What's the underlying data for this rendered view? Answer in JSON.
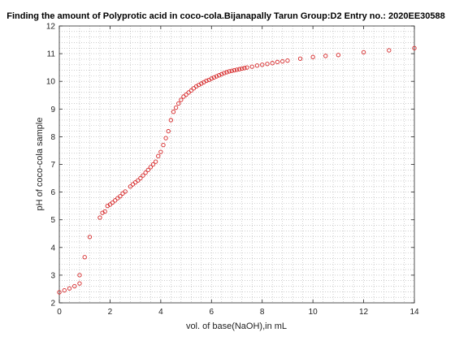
{
  "chart_data": {
    "type": "scatter",
    "title": "Finding the amount of Polyprotic acid in coco-cola.Bijanapally Tarun Group:D2 Entry no.: 2020EE30588",
    "xlabel": "vol. of base(NaOH),in mL",
    "ylabel": "pH of coco-cola sample",
    "xlim": [
      0,
      14
    ],
    "ylim": [
      2,
      12
    ],
    "xticks": [
      0,
      2,
      4,
      6,
      8,
      10,
      12,
      14
    ],
    "yticks": [
      2,
      3,
      4,
      5,
      6,
      7,
      8,
      9,
      10,
      11,
      12
    ],
    "grid": "minor-dotted",
    "marker_color": "#d62728",
    "series": [
      {
        "points": [
          [
            0.0,
            2.38
          ],
          [
            0.2,
            2.45
          ],
          [
            0.4,
            2.52
          ],
          [
            0.6,
            2.6
          ],
          [
            0.8,
            2.7
          ],
          [
            0.8,
            3.0
          ],
          [
            1.0,
            3.65
          ],
          [
            1.2,
            4.38
          ],
          [
            1.6,
            5.08
          ],
          [
            1.7,
            5.25
          ],
          [
            1.8,
            5.3
          ],
          [
            1.9,
            5.5
          ],
          [
            2.0,
            5.55
          ],
          [
            2.1,
            5.62
          ],
          [
            2.2,
            5.7
          ],
          [
            2.3,
            5.78
          ],
          [
            2.4,
            5.85
          ],
          [
            2.5,
            5.95
          ],
          [
            2.6,
            6.02
          ],
          [
            2.8,
            6.2
          ],
          [
            2.9,
            6.28
          ],
          [
            3.0,
            6.35
          ],
          [
            3.1,
            6.42
          ],
          [
            3.2,
            6.5
          ],
          [
            3.3,
            6.6
          ],
          [
            3.4,
            6.7
          ],
          [
            3.5,
            6.8
          ],
          [
            3.6,
            6.9
          ],
          [
            3.7,
            7.0
          ],
          [
            3.8,
            7.1
          ],
          [
            3.9,
            7.3
          ],
          [
            4.0,
            7.45
          ],
          [
            4.1,
            7.7
          ],
          [
            4.2,
            7.95
          ],
          [
            4.3,
            8.2
          ],
          [
            4.4,
            8.6
          ],
          [
            4.5,
            8.9
          ],
          [
            4.6,
            9.05
          ],
          [
            4.7,
            9.2
          ],
          [
            4.8,
            9.33
          ],
          [
            4.9,
            9.45
          ],
          [
            5.0,
            9.52
          ],
          [
            5.1,
            9.6
          ],
          [
            5.2,
            9.67
          ],
          [
            5.3,
            9.75
          ],
          [
            5.4,
            9.82
          ],
          [
            5.5,
            9.87
          ],
          [
            5.6,
            9.92
          ],
          [
            5.7,
            9.97
          ],
          [
            5.8,
            10.02
          ],
          [
            5.9,
            10.05
          ],
          [
            6.0,
            10.1
          ],
          [
            6.1,
            10.14
          ],
          [
            6.2,
            10.18
          ],
          [
            6.3,
            10.22
          ],
          [
            6.4,
            10.26
          ],
          [
            6.5,
            10.3
          ],
          [
            6.6,
            10.33
          ],
          [
            6.7,
            10.36
          ],
          [
            6.8,
            10.38
          ],
          [
            6.9,
            10.4
          ],
          [
            7.0,
            10.42
          ],
          [
            7.1,
            10.44
          ],
          [
            7.2,
            10.46
          ],
          [
            7.3,
            10.48
          ],
          [
            7.4,
            10.5
          ],
          [
            7.6,
            10.53
          ],
          [
            7.8,
            10.57
          ],
          [
            8.0,
            10.6
          ],
          [
            8.2,
            10.63
          ],
          [
            8.4,
            10.66
          ],
          [
            8.6,
            10.7
          ],
          [
            8.8,
            10.72
          ],
          [
            9.0,
            10.75
          ],
          [
            9.5,
            10.82
          ],
          [
            10.0,
            10.88
          ],
          [
            10.5,
            10.92
          ],
          [
            11.0,
            10.95
          ],
          [
            12.0,
            11.05
          ],
          [
            13.0,
            11.12
          ],
          [
            14.0,
            11.2
          ]
        ]
      }
    ]
  }
}
